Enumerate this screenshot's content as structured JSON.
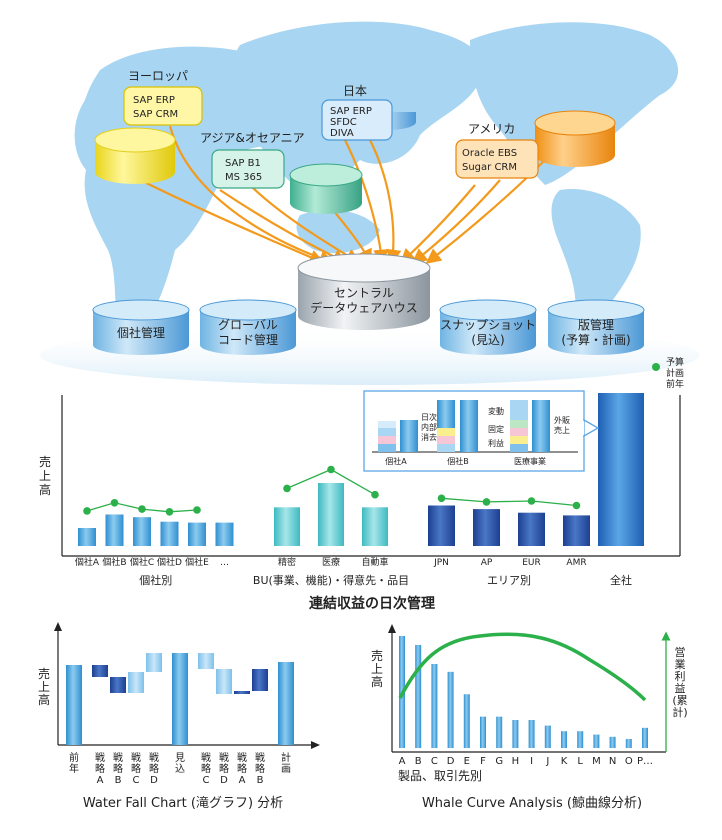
{
  "top": {
    "regions": [
      {
        "id": "europe",
        "name": "ヨーロッパ",
        "systems": [
          "SAP ERP",
          "SAP CRM"
        ],
        "color": "#f3e840"
      },
      {
        "id": "asia",
        "name": "アジア&オセアニア",
        "systems": [
          "SAP B1",
          "MS 365"
        ],
        "color": "#5cc7a7"
      },
      {
        "id": "japan",
        "name": "日本",
        "systems": [
          "SAP ERP",
          "SFDC",
          "DIVA"
        ],
        "color": "#5aa7e8"
      },
      {
        "id": "america",
        "name": "アメリカ",
        "systems": [
          "Oracle EBS",
          "Sugar CRM"
        ],
        "color": "#f5a12a"
      }
    ],
    "central": [
      "セントラル",
      "データウェアハウス"
    ],
    "modules": [
      [
        "個社管理"
      ],
      [
        "グローバル",
        "コード管理"
      ],
      [
        "スナップショット",
        "(見込)"
      ],
      [
        "版管理",
        "(予算・計画)"
      ]
    ]
  },
  "main_chart": {
    "title": "連結収益の日次管理",
    "ylabel": [
      "売",
      "上",
      "高"
    ],
    "legend": [
      "予算",
      "計画",
      "前年"
    ],
    "groups": [
      {
        "label": "個社別",
        "items": [
          {
            "name": "個社A",
            "value": 20,
            "plan": 39
          },
          {
            "name": "個社B",
            "value": 35,
            "plan": 48
          },
          {
            "name": "個社C",
            "value": 32,
            "plan": 41
          },
          {
            "name": "個社D",
            "value": 27,
            "plan": 38
          },
          {
            "name": "個社E",
            "value": 26,
            "plan": 40
          },
          {
            "name": "…",
            "value": 26,
            "plan": null
          }
        ]
      },
      {
        "label": "BU(事業、機能)・得意先・品目",
        "items": [
          {
            "name": "精密",
            "value": 43,
            "plan": 64
          },
          {
            "name": "医療",
            "value": 70,
            "plan": 85
          },
          {
            "name": "自動車",
            "value": 43,
            "plan": 57
          }
        ]
      },
      {
        "label": "エリア別",
        "items": [
          {
            "name": "JPN",
            "value": 45,
            "plan": 53
          },
          {
            "name": "AP",
            "value": 41,
            "plan": 49
          },
          {
            "name": "EUR",
            "value": 37,
            "plan": 50
          },
          {
            "name": "AMR",
            "value": 34,
            "plan": 45
          }
        ]
      },
      {
        "label": "全社",
        "items": [
          {
            "name": "",
            "value": 170,
            "plan": null
          }
        ]
      }
    ],
    "inset": {
      "labels": {
        "naibu": [
          "日次",
          "内部",
          "消去"
        ],
        "hendo": "変動",
        "kotei": "固定",
        "rieki": "利益",
        "gaihan": [
          "外販",
          "売上"
        ]
      },
      "groups": [
        "個社A",
        "個社B",
        "医療事業"
      ]
    }
  },
  "waterfall": {
    "title": "Water Fall Chart (滝グラフ) 分析",
    "ylabel": [
      "売",
      "上",
      "高"
    ],
    "categories": [
      [
        "前",
        "年"
      ],
      [
        "戦",
        "略",
        "A"
      ],
      [
        "戦",
        "略",
        "B"
      ],
      [
        "戦",
        "略",
        "C"
      ],
      [
        "戦",
        "略",
        "D"
      ],
      [
        "見",
        "込"
      ],
      [
        "戦",
        "略",
        "C"
      ],
      [
        "戦",
        "略",
        "D"
      ],
      [
        "戦",
        "略",
        "A"
      ],
      [
        "戦",
        "略",
        "B"
      ],
      [
        "計",
        "画"
      ]
    ]
  },
  "whale": {
    "title": "Whale Curve Analysis (鯨曲線分析)",
    "ylabel": [
      "売",
      "上",
      "高"
    ],
    "y2label": [
      "営",
      "業",
      "利",
      "益",
      "(累",
      "計)"
    ],
    "xlabel": "製品、取引先別",
    "categories": [
      "A",
      "B",
      "C",
      "D",
      "E",
      "F",
      "G",
      "H",
      "I",
      "J",
      "K",
      "L",
      "M",
      "N",
      "O",
      "P…"
    ],
    "bars": [
      100,
      92,
      75,
      68,
      48,
      28,
      28,
      25,
      25,
      20,
      15,
      15,
      12,
      10,
      8,
      18
    ]
  }
}
